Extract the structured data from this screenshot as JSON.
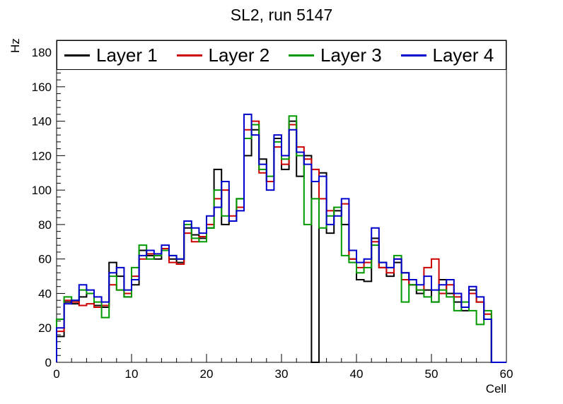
{
  "chart_data": {
    "type": "line",
    "style": "step-histogram",
    "title": "SL2, run 5147",
    "xlabel": "Cell",
    "ylabel": "Hz",
    "xlim": [
      0,
      60
    ],
    "ylim": [
      0,
      187
    ],
    "x_major_ticks": [
      0,
      10,
      20,
      30,
      40,
      50,
      60
    ],
    "x_minor_step": 2,
    "y_major_ticks": [
      0,
      20,
      40,
      60,
      80,
      100,
      120,
      140,
      160,
      180
    ],
    "y_minor_step": 4,
    "grid": false,
    "legend_position": "top",
    "bin_width": 1,
    "series": [
      {
        "name": "Layer 1",
        "color": "#000000",
        "values": [
          15,
          35,
          34,
          38,
          40,
          33,
          32,
          58,
          50,
          38,
          45,
          65,
          62,
          60,
          65,
          60,
          58,
          78,
          74,
          72,
          78,
          112,
          80,
          82,
          95,
          120,
          135,
          118,
          105,
          130,
          112,
          140,
          108,
          120,
          0,
          110,
          75,
          88,
          80,
          60,
          48,
          47,
          72,
          55,
          50,
          58,
          52,
          45,
          40,
          42,
          35,
          48,
          40,
          35,
          30,
          42,
          35,
          25,
          0,
          0
        ]
      },
      {
        "name": "Layer 2",
        "color": "#cc0000",
        "values": [
          18,
          36,
          35,
          33,
          34,
          32,
          33,
          45,
          42,
          40,
          50,
          60,
          63,
          62,
          66,
          58,
          57,
          75,
          70,
          73,
          80,
          95,
          100,
          85,
          90,
          135,
          140,
          110,
          105,
          125,
          115,
          138,
          125,
          118,
          112,
          95,
          88,
          90,
          92,
          60,
          55,
          58,
          70,
          55,
          52,
          60,
          48,
          45,
          42,
          55,
          60,
          40,
          45,
          38,
          32,
          40,
          35,
          28,
          0,
          0
        ]
      },
      {
        "name": "Layer 3",
        "color": "#009900",
        "values": [
          25,
          38,
          36,
          42,
          40,
          35,
          26,
          50,
          42,
          38,
          55,
          68,
          60,
          62,
          65,
          62,
          60,
          80,
          72,
          70,
          78,
          100,
          85,
          82,
          95,
          130,
          138,
          112,
          108,
          128,
          118,
          143,
          120,
          80,
          95,
          78,
          85,
          90,
          62,
          58,
          52,
          55,
          68,
          58,
          55,
          62,
          35,
          45,
          42,
          38,
          35,
          42,
          38,
          30,
          35,
          30,
          22,
          30,
          0,
          0
        ]
      },
      {
        "name": "Layer 4",
        "color": "#0000cc",
        "values": [
          20,
          34,
          36,
          45,
          42,
          38,
          35,
          52,
          55,
          42,
          48,
          62,
          65,
          63,
          68,
          62,
          60,
          82,
          78,
          75,
          85,
          90,
          105,
          82,
          88,
          144,
          132,
          115,
          100,
          132,
          120,
          135,
          122,
          115,
          105,
          108,
          80,
          85,
          95,
          65,
          58,
          60,
          78,
          58,
          55,
          60,
          52,
          48,
          45,
          50,
          42,
          45,
          48,
          40,
          32,
          44,
          38,
          25,
          0,
          0
        ]
      }
    ]
  }
}
